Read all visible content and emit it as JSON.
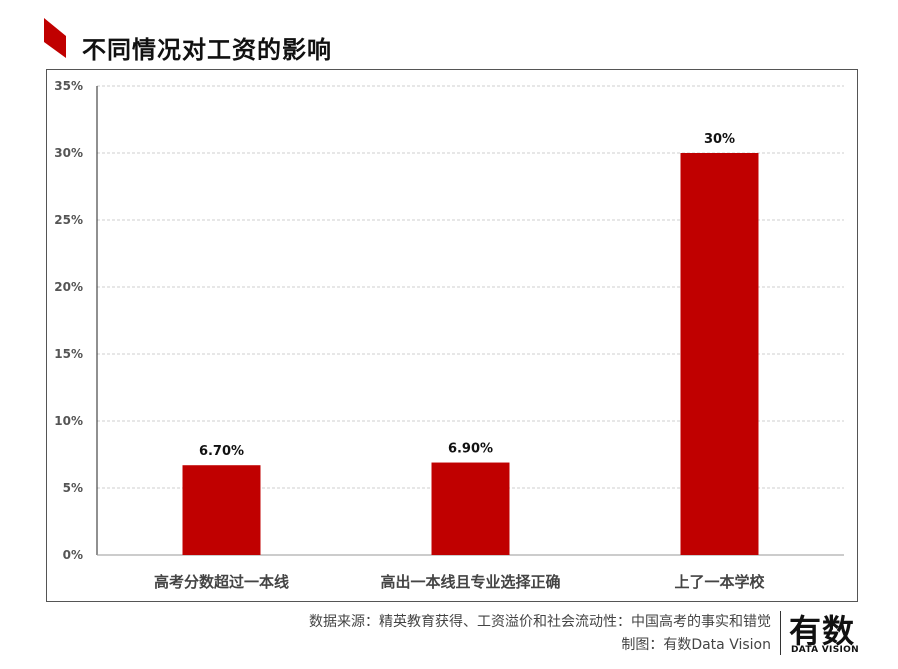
{
  "header": {
    "title": "不同情况对工资的影响",
    "accent_color": "#c00000"
  },
  "chart_data": {
    "type": "bar",
    "title": "",
    "xlabel": "",
    "ylabel": "",
    "categories": [
      "高考分数超过一本线",
      "高出一本线且专业选择正确",
      "上了一本学校"
    ],
    "values": [
      6.7,
      6.9,
      30
    ],
    "value_labels": [
      "6.70%",
      "6.90%",
      "30%"
    ],
    "ylim": [
      0,
      35
    ],
    "y_ticks": [
      0,
      5,
      10,
      15,
      20,
      25,
      30,
      35
    ],
    "y_tick_labels": [
      "0%",
      "5%",
      "10%",
      "15%",
      "20%",
      "25%",
      "30%",
      "35%"
    ],
    "bar_color": "#c00000",
    "grid": true,
    "legend": "none"
  },
  "footer": {
    "source": "数据来源：精英教育获得、工资溢价和社会流动性：中国高考的事实和错觉",
    "credit": "制图：有数Data Vision",
    "logo_main": "有数",
    "logo_sub": "DATA VISION"
  }
}
